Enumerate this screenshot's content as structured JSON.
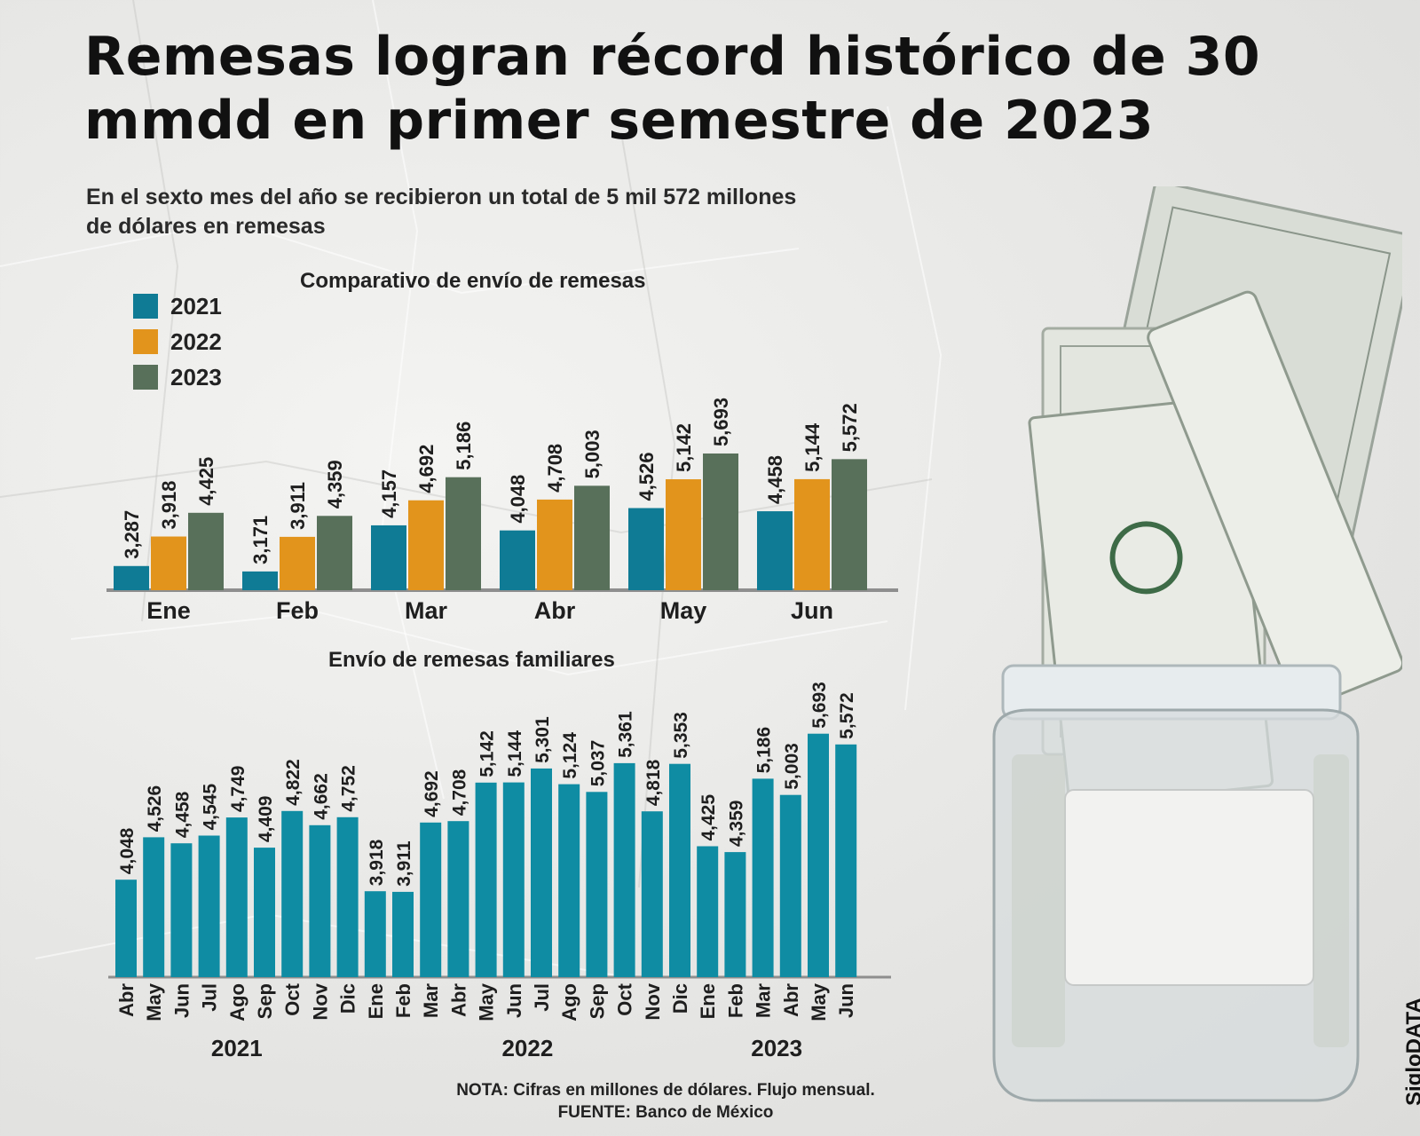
{
  "title": "Remesas logran récord histórico de 30 mmdd en primer semestre de 2023",
  "subtitle": "En el sexto mes del año se recibieron un total de 5 mil 572 millones de dólares en remesas",
  "note": "NOTA: Cifras en millones de dólares. Flujo mensual.",
  "source": "FUENTE: Banco de México",
  "brand": "SigloDATA",
  "illustration": "jar-of-dollar-bills",
  "chart_data": [
    {
      "type": "bar",
      "title": "Comparativo de envío de remesas",
      "categories": [
        "Ene",
        "Feb",
        "Mar",
        "Abr",
        "May",
        "Jun"
      ],
      "series": [
        {
          "name": "2021",
          "color": "#0f7b95",
          "values": [
            3287,
            3171,
            4157,
            4048,
            4526,
            4458
          ],
          "labels": [
            "3,287",
            "3,171",
            "4,157",
            "4,048",
            "4,526",
            "4,458"
          ]
        },
        {
          "name": "2022",
          "color": "#e2941c",
          "values": [
            3918,
            3911,
            4692,
            4708,
            5142,
            5144
          ],
          "labels": [
            "3,918",
            "3,911",
            "4,692",
            "4,708",
            "5,142",
            "5,144"
          ]
        },
        {
          "name": "2023",
          "color": "#58705a",
          "values": [
            4425,
            4359,
            5186,
            5003,
            5693,
            5572
          ],
          "labels": [
            "4,425",
            "4,359",
            "5,186",
            "5,003",
            "5,693",
            "5,572"
          ]
        }
      ],
      "legend": "top-left",
      "grid": false
    },
    {
      "type": "bar",
      "title": "Envío de remesas familiares",
      "categories": [
        "Abr",
        "May",
        "Jun",
        "Jul",
        "Ago",
        "Sep",
        "Oct",
        "Nov",
        "Dic",
        "Ene",
        "Feb",
        "Mar",
        "Abr",
        "May",
        "Jun",
        "Jul",
        "Ago",
        "Sep",
        "Oct",
        "Nov",
        "Dic",
        "Ene",
        "Feb",
        "Mar",
        "Abr",
        "May",
        "Jun"
      ],
      "year_groups": [
        {
          "label": "2021",
          "start": 0,
          "end": 8
        },
        {
          "label": "2022",
          "start": 9,
          "end": 20
        },
        {
          "label": "2023",
          "start": 21,
          "end": 26
        }
      ],
      "values": [
        4048,
        4526,
        4458,
        4545,
        4749,
        4409,
        4822,
        4662,
        4752,
        3918,
        3911,
        4692,
        4708,
        5142,
        5144,
        5301,
        5124,
        5037,
        5361,
        4818,
        5353,
        4425,
        4359,
        5186,
        5003,
        5693,
        5572
      ],
      "labels": [
        "4,048",
        "4,526",
        "4,458",
        "4,545",
        "4,749",
        "4,409",
        "4,822",
        "4,662",
        "4,752",
        "3,918",
        "3,911",
        "4,692",
        "4,708",
        "5,142",
        "5,144",
        "5,301",
        "5,124",
        "5,037",
        "5,361",
        "4,818",
        "5,353",
        "4,425",
        "4,359",
        "5,186",
        "5,003",
        "5,693",
        "5,572"
      ],
      "color": "#0f8ca3",
      "grid": false
    }
  ]
}
